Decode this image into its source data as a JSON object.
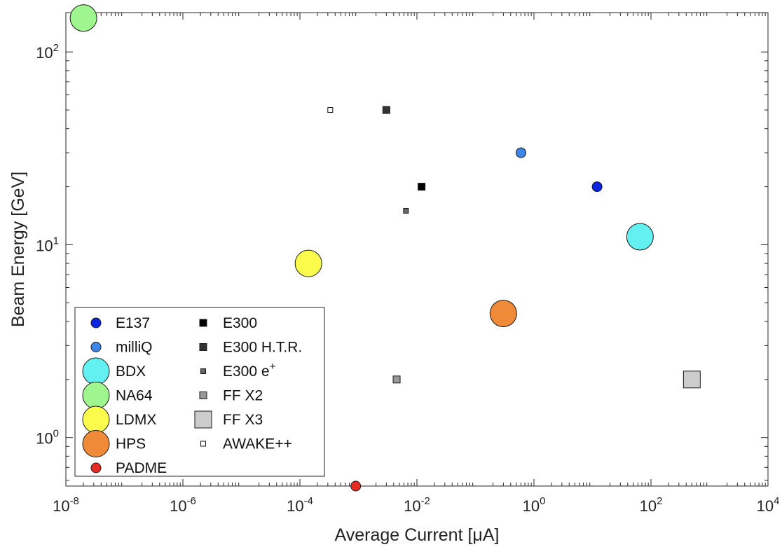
{
  "chart_data": {
    "type": "scatter",
    "title": "",
    "xlabel": "Average Current [μA]",
    "ylabel": "Beam Energy [GeV]",
    "xscale": "log",
    "yscale": "log",
    "xlim": [
      1e-08,
      10000
    ],
    "ylim": [
      0.56,
      160
    ],
    "x_ticks": [
      {
        "value": 1e-08,
        "base": "10",
        "exp": "-8"
      },
      {
        "value": 1e-06,
        "base": "10",
        "exp": "-6"
      },
      {
        "value": 0.0001,
        "base": "10",
        "exp": "-4"
      },
      {
        "value": 0.01,
        "base": "10",
        "exp": "-2"
      },
      {
        "value": 1,
        "base": "10",
        "exp": "0"
      },
      {
        "value": 100,
        "base": "10",
        "exp": "2"
      },
      {
        "value": 10000,
        "base": "10",
        "exp": "4"
      }
    ],
    "y_ticks": [
      {
        "value": 1,
        "base": "10",
        "exp": "0"
      },
      {
        "value": 10,
        "base": "10",
        "exp": "1"
      },
      {
        "value": 100,
        "base": "10",
        "exp": "2"
      }
    ],
    "grid": false,
    "legend_position": "bottom-left",
    "series": [
      {
        "name": "E137",
        "marker": "circle",
        "size": 1,
        "color": "#0b24e0",
        "points": [
          {
            "x": 12,
            "y": 20
          }
        ]
      },
      {
        "name": "milliQ",
        "marker": "circle",
        "size": 1,
        "color": "#3d86e8",
        "points": [
          {
            "x": 0.6,
            "y": 30
          }
        ]
      },
      {
        "name": "BDX",
        "marker": "circle",
        "size": 3,
        "color": "#63f0f0",
        "points": [
          {
            "x": 65,
            "y": 11
          }
        ]
      },
      {
        "name": "NA64",
        "marker": "circle",
        "size": 3,
        "color": "#9ff58e",
        "points": [
          {
            "x": 2e-08,
            "y": 150
          }
        ]
      },
      {
        "name": "LDMX",
        "marker": "circle",
        "size": 3,
        "color": "#fbfb4b",
        "points": [
          {
            "x": 0.00014,
            "y": 8
          }
        ]
      },
      {
        "name": "HPS",
        "marker": "circle",
        "size": 3,
        "color": "#ef8a39",
        "points": [
          {
            "x": 0.3,
            "y": 4.4
          }
        ]
      },
      {
        "name": "PADME",
        "marker": "circle",
        "size": 1,
        "color": "#e52b22",
        "points": [
          {
            "x": 0.0009,
            "y": 0.56
          }
        ]
      },
      {
        "name": "E300",
        "marker": "square",
        "size": 1,
        "color": "#000000",
        "points": [
          {
            "x": 0.012,
            "y": 20
          }
        ]
      },
      {
        "name": "E300 H.T.R.",
        "marker": "square",
        "size": 1,
        "color": "#333333",
        "points": [
          {
            "x": 0.003,
            "y": 50
          }
        ]
      },
      {
        "name": "E300 e",
        "name_sup": "+",
        "marker": "square",
        "size": 0.7,
        "color": "#666666",
        "points": [
          {
            "x": 0.0065,
            "y": 15
          }
        ]
      },
      {
        "name": "FF X2",
        "marker": "square",
        "size": 1,
        "color": "#999999",
        "points": [
          {
            "x": 0.0045,
            "y": 2
          }
        ]
      },
      {
        "name": "FF X3",
        "marker": "square",
        "size": 3,
        "color": "#cccccc",
        "points": [
          {
            "x": 500,
            "y": 2
          }
        ]
      },
      {
        "name": "AWAKE++",
        "marker": "square",
        "size": 0.7,
        "color": "#ffffff",
        "points": [
          {
            "x": 0.00033,
            "y": 50
          }
        ]
      }
    ]
  }
}
